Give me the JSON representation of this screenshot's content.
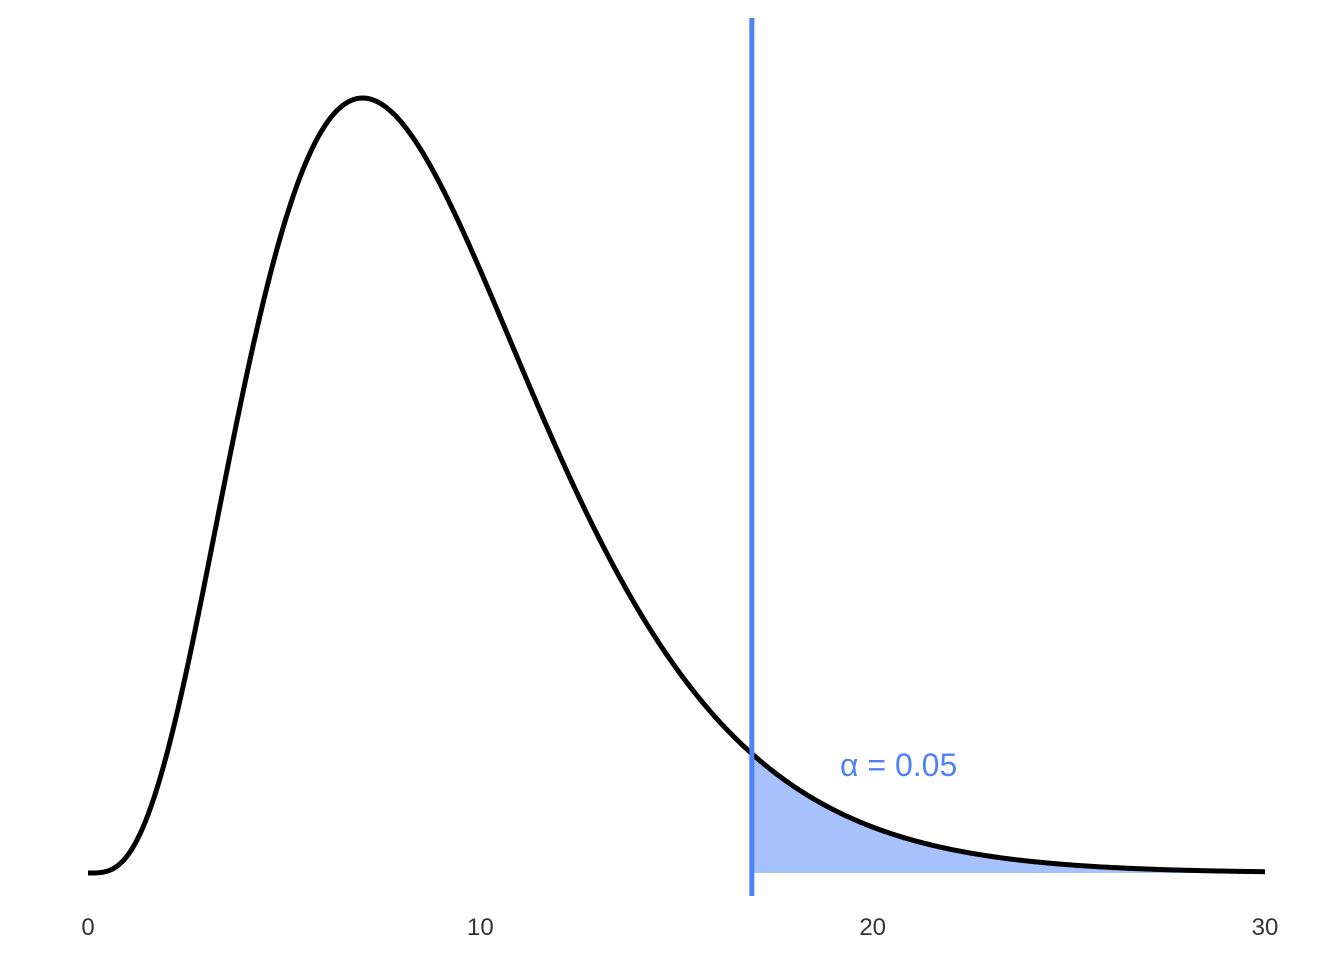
{
  "chart_data": {
    "type": "area",
    "distribution": "chi-squared",
    "degrees_of_freedom": 9,
    "xlim": [
      0,
      30
    ],
    "x_ticks": [
      "0",
      "10",
      "20",
      "30"
    ],
    "critical_value": 16.92,
    "alpha_label": "α = 0.05",
    "grid": false,
    "y_axis_shown": false,
    "colors": {
      "curve": "#000000",
      "critical_line": "#4f82f4",
      "shaded_region": "#a6c1fc",
      "annotation": "#4f82f4",
      "tick_text": "#333333"
    }
  }
}
